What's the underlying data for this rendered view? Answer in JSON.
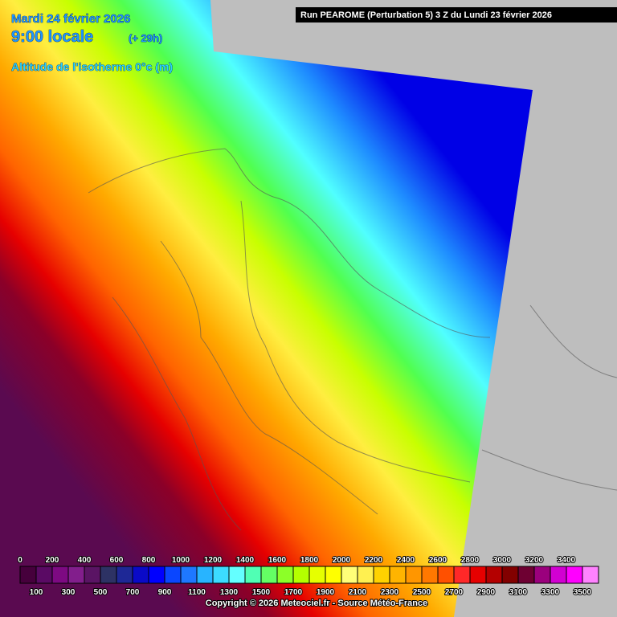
{
  "header": {
    "date": "Mardi 24 février 2026",
    "time": "9:00 locale",
    "lead": "(+ 29h)",
    "parameter": "Altitude de l'isotherme 0°c (m)",
    "run": "Run PEAROME (Perturbation 5) 3 Z du Lundi 23 février 2026"
  },
  "legend": {
    "values": [
      0,
      100,
      200,
      300,
      400,
      500,
      600,
      700,
      800,
      900,
      1000,
      1100,
      1200,
      1300,
      1400,
      1500,
      1600,
      1700,
      1800,
      1900,
      2000,
      2100,
      2200,
      2300,
      2400,
      2500,
      2600,
      2700,
      2800,
      2900,
      3000,
      3100,
      3200,
      3300,
      3400,
      3500
    ],
    "colors": [
      "#46003c",
      "#5a0a64",
      "#7d0a82",
      "#821e8c",
      "#5a1464",
      "#2d3264",
      "#1e2896",
      "#0a0ac8",
      "#0000ff",
      "#0a46ff",
      "#1e78ff",
      "#28b4ff",
      "#3cdcff",
      "#64ffff",
      "#50ffb4",
      "#64ff64",
      "#8cff28",
      "#b4ff00",
      "#e6ff00",
      "#ffff00",
      "#ffff78",
      "#fff050",
      "#ffd200",
      "#ffb400",
      "#ff9600",
      "#ff7800",
      "#ff5000",
      "#ff2828",
      "#e60000",
      "#b40000",
      "#820000",
      "#6e0032",
      "#9b007d",
      "#d200d2",
      "#ff00ff",
      "#ff82ff"
    ]
  },
  "footer": {
    "copyright": "Copyright © 2026 Meteociel.fr - Source Météo-France"
  }
}
